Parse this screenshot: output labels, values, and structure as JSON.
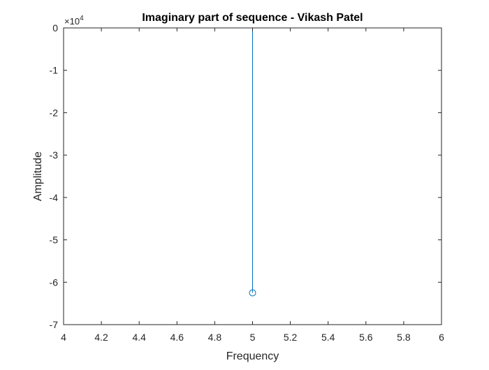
{
  "chart_data": {
    "type": "stem",
    "title": "Imaginary part of sequence - Vikash Patel",
    "xlabel": "Frequency",
    "ylabel": "Amplitude",
    "xlim": [
      4,
      6
    ],
    "ylim": [
      -70000,
      0
    ],
    "xticks": [
      4,
      4.2,
      4.4,
      4.6,
      4.8,
      5,
      5.2,
      5.4,
      5.6,
      5.8,
      6
    ],
    "xtick_labels": [
      "4",
      "4.2",
      "4.4",
      "4.6",
      "4.8",
      "5",
      "5.2",
      "5.4",
      "5.6",
      "5.8",
      "6"
    ],
    "yticks": [
      0,
      -10000,
      -20000,
      -30000,
      -40000,
      -50000,
      -60000,
      -70000
    ],
    "ytick_labels": [
      "0",
      "-1",
      "-2",
      "-3",
      "-4",
      "-5",
      "-6",
      "-7"
    ],
    "y_exponent_label": "×10",
    "y_exponent_power": "4",
    "series": [
      {
        "x": [
          5
        ],
        "y": [
          -62500
        ],
        "marker": "circle",
        "color": "#0072BD"
      }
    ],
    "grid": false,
    "box": true
  }
}
